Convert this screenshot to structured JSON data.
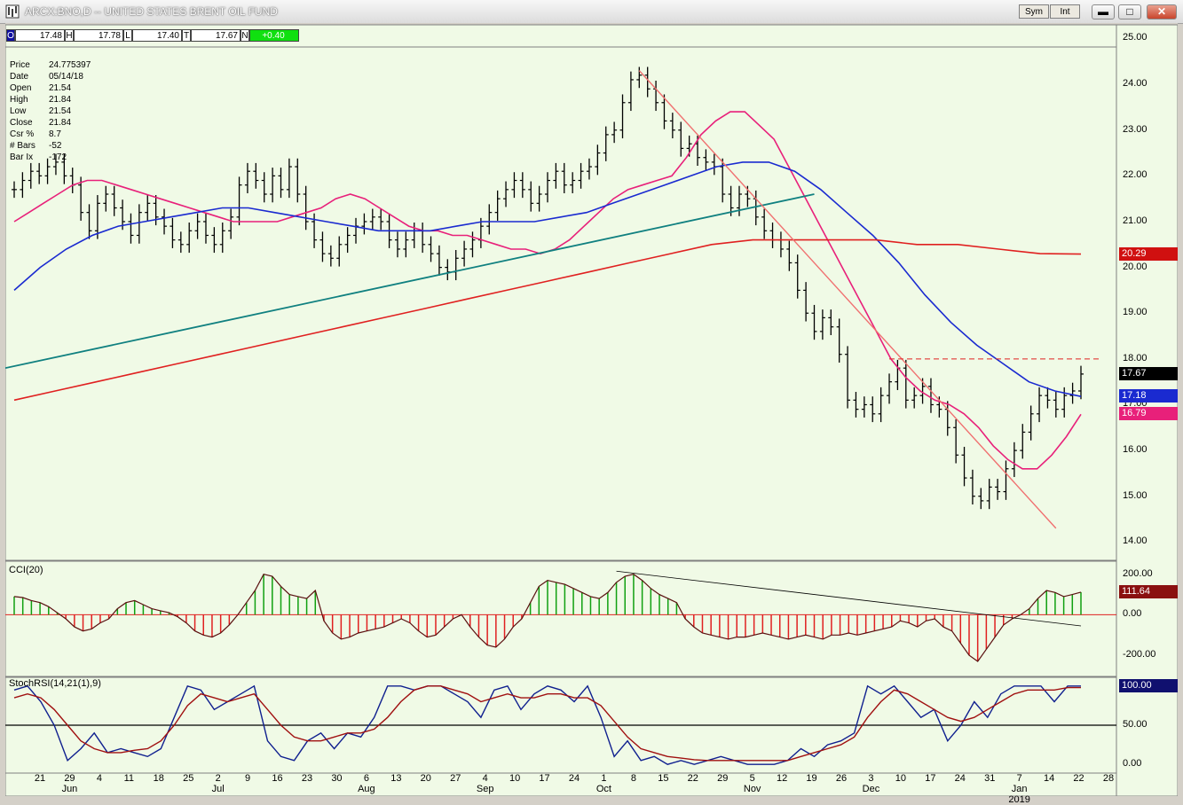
{
  "window": {
    "title": "ARCX:BNO,D -- UNITED STATES BRENT OIL FUND",
    "sym_label": "Sym",
    "int_label": "Int",
    "min_glyph": "▬",
    "max_glyph": "□",
    "close_glyph": "✕"
  },
  "ohlc_bar": {
    "o_key": "O",
    "o_val": "17.48",
    "h_key": "H",
    "h_val": "17.78",
    "l_key": "L",
    "l_val": "17.40",
    "c_key": "T",
    "c_val": "17.67",
    "n_key": "N",
    "n_val": "+0.40"
  },
  "info_panel": [
    {
      "label": "Price",
      "value": "24.775397"
    },
    {
      "label": "Date",
      "value": "05/14/18"
    },
    {
      "label": "Open",
      "value": "21.54"
    },
    {
      "label": "High",
      "value": "21.84"
    },
    {
      "label": "Low",
      "value": "21.54"
    },
    {
      "label": "Close",
      "value": "21.84"
    },
    {
      "label": "Csr %",
      "value": "8.7"
    },
    {
      "label": "# Bars",
      "value": "-52"
    },
    {
      "label": "Bar Ix",
      "value": "-172"
    }
  ],
  "colors": {
    "background": "#f0fae6",
    "bars": "#000000",
    "ma_fast": "#e8207a",
    "ma_mid": "#1a2ad0",
    "ma_slow": "#e02020",
    "trend_up": "#108080",
    "trend_down": "#f07070",
    "cci_pos": "#10a010",
    "cci_neg": "#e02020",
    "rsi_line": "#10208f",
    "rsi_signal": "#a01010"
  },
  "price_tags": {
    "last": "17.67",
    "ma_mid": "17.18",
    "ma_fast": "16.79",
    "ma_slow": "20.29"
  },
  "cci_panel": {
    "title": "CCI(20)",
    "tag": "111.64",
    "ticks": [
      "200.00",
      "0.00",
      "-200.00"
    ]
  },
  "rsi_panel": {
    "title": "StochRSI(14,21(1),9)",
    "tag": "100.00",
    "ticks": [
      "100.00",
      "50.00",
      "0.00"
    ]
  },
  "x_axis": {
    "day_labels": [
      "21",
      "29",
      "4",
      "11",
      "18",
      "25",
      "2",
      "9",
      "16",
      "23",
      "30",
      "6",
      "13",
      "20",
      "27",
      "4",
      "10",
      "17",
      "24",
      "1",
      "8",
      "15",
      "22",
      "29",
      "5",
      "12",
      "19",
      "26",
      "3",
      "10",
      "17",
      "24",
      "31",
      "7",
      "14",
      "22",
      "28"
    ],
    "month_labels": [
      "Jun",
      "Jul",
      "Aug",
      "Sep",
      "Oct",
      "Nov",
      "Dec",
      "Jan 2019"
    ]
  },
  "chart_data": [
    {
      "type": "line",
      "title": "ARCX:BNO,D -- UNITED STATES BRENT OIL FUND",
      "ylim": [
        13.6,
        25.3
      ],
      "y_ticks": [
        14.0,
        15.0,
        16.0,
        17.0,
        18.0,
        19.0,
        20.0,
        21.0,
        22.0,
        23.0,
        24.0,
        25.0
      ],
      "close_series": [
        21.7,
        21.9,
        22.1,
        22.0,
        22.2,
        22.3,
        22.0,
        21.8,
        21.2,
        20.8,
        21.4,
        21.6,
        21.3,
        21.0,
        20.7,
        21.2,
        21.4,
        21.1,
        20.9,
        20.6,
        20.5,
        20.8,
        21.0,
        20.7,
        20.5,
        20.8,
        21.1,
        21.8,
        22.1,
        21.9,
        21.6,
        22.0,
        21.7,
        22.2,
        21.6,
        21.0,
        20.6,
        20.3,
        20.2,
        20.5,
        20.7,
        20.9,
        21.0,
        21.1,
        21.0,
        20.6,
        20.4,
        20.6,
        20.8,
        20.5,
        20.3,
        20.0,
        19.9,
        20.2,
        20.4,
        20.6,
        20.9,
        21.2,
        21.5,
        21.7,
        21.9,
        21.7,
        21.4,
        21.6,
        21.9,
        22.1,
        21.8,
        21.9,
        22.1,
        22.2,
        22.5,
        22.9,
        23.0,
        23.6,
        24.1,
        24.2,
        23.9,
        23.6,
        23.2,
        23.0,
        22.6,
        22.7,
        22.4,
        22.3,
        22.2,
        21.6,
        21.3,
        21.6,
        21.5,
        21.1,
        20.8,
        20.6,
        20.4,
        20.1,
        19.5,
        19.0,
        18.6,
        18.9,
        18.7,
        18.1,
        17.1,
        16.9,
        17.0,
        16.8,
        17.2,
        17.5,
        17.8,
        17.1,
        17.2,
        17.4,
        17.0,
        16.9,
        16.5,
        15.9,
        15.4,
        15.0,
        14.9,
        15.2,
        15.1,
        15.6,
        16.0,
        16.4,
        16.8,
        17.2,
        17.1,
        16.9,
        17.2,
        17.3,
        17.67
      ],
      "series": [
        {
          "name": "Fast MA",
          "values": [
            21.0,
            21.2,
            21.4,
            21.6,
            21.8,
            21.9,
            21.9,
            21.8,
            21.7,
            21.6,
            21.5,
            21.4,
            21.3,
            21.2,
            21.1,
            21.0,
            21.0,
            21.0,
            21.0,
            21.1,
            21.2,
            21.3,
            21.5,
            21.6,
            21.5,
            21.3,
            21.1,
            20.9,
            20.8,
            20.8,
            20.7,
            20.7,
            20.6,
            20.5,
            20.4,
            20.4,
            20.3,
            20.4,
            20.6,
            20.9,
            21.2,
            21.5,
            21.7,
            21.8,
            21.9,
            22.0,
            22.4,
            22.9,
            23.2,
            23.4,
            23.4,
            23.1,
            22.8,
            22.2,
            21.6,
            21.0,
            20.4,
            19.8,
            19.2,
            18.6,
            18.0,
            17.6,
            17.3,
            17.1,
            17.0,
            16.8,
            16.5,
            16.1,
            15.8,
            15.6,
            15.6,
            15.9,
            16.3,
            16.79
          ]
        },
        {
          "name": "Mid MA",
          "values": [
            19.5,
            20.0,
            20.4,
            20.7,
            20.9,
            21.0,
            21.1,
            21.2,
            21.3,
            21.3,
            21.2,
            21.1,
            21.0,
            20.9,
            20.8,
            20.8,
            20.8,
            20.9,
            21.0,
            21.0,
            21.0,
            21.1,
            21.2,
            21.4,
            21.6,
            21.8,
            22.0,
            22.2,
            22.3,
            22.3,
            22.1,
            21.7,
            21.2,
            20.7,
            20.1,
            19.4,
            18.8,
            18.3,
            17.9,
            17.5,
            17.3,
            17.18
          ]
        },
        {
          "name": "Slow MA",
          "values": [
            17.1,
            17.3,
            17.5,
            17.7,
            17.9,
            18.1,
            18.3,
            18.5,
            18.7,
            18.9,
            19.1,
            19.3,
            19.5,
            19.7,
            19.9,
            20.1,
            20.3,
            20.5,
            20.6,
            20.6,
            20.6,
            20.6,
            20.5,
            20.5,
            20.4,
            20.3,
            20.29
          ]
        }
      ]
    },
    {
      "type": "bar",
      "title": "CCI(20)",
      "ylim": [
        -300,
        260
      ],
      "y_ticks": [
        200,
        0,
        -200
      ],
      "values": [
        90,
        85,
        70,
        60,
        40,
        10,
        -20,
        -60,
        -80,
        -70,
        -40,
        -20,
        30,
        60,
        70,
        50,
        30,
        20,
        10,
        -10,
        -40,
        -80,
        -100,
        -110,
        -90,
        -50,
        0,
        60,
        120,
        200,
        190,
        140,
        100,
        90,
        80,
        120,
        -30,
        -90,
        -120,
        -110,
        -90,
        -80,
        -70,
        -60,
        -40,
        -20,
        -40,
        -80,
        -110,
        -100,
        -60,
        -20,
        0,
        -60,
        -110,
        -150,
        -160,
        -120,
        -60,
        -20,
        60,
        140,
        170,
        160,
        150,
        130,
        110,
        90,
        80,
        110,
        160,
        190,
        200,
        170,
        130,
        100,
        80,
        60,
        -20,
        -60,
        -90,
        -100,
        -110,
        -120,
        -110,
        -110,
        -100,
        -90,
        -100,
        -110,
        -120,
        -110,
        -100,
        -110,
        -120,
        -100,
        -100,
        -90,
        -100,
        -90,
        -80,
        -70,
        -60,
        -30,
        -40,
        -60,
        -30,
        -20,
        -60,
        -80,
        -140,
        -200,
        -230,
        -170,
        -110,
        -50,
        -20,
        0,
        30,
        80,
        120,
        110,
        90,
        100,
        111.64
      ]
    },
    {
      "type": "line",
      "title": "StochRSI(14,21(1),9)",
      "ylim": [
        -10,
        110
      ],
      "y_ticks": [
        100,
        50,
        0
      ],
      "series": [
        {
          "name": "StochRSI",
          "values": [
            95,
            100,
            80,
            50,
            5,
            20,
            40,
            15,
            20,
            15,
            10,
            20,
            60,
            100,
            95,
            70,
            80,
            90,
            100,
            30,
            10,
            5,
            30,
            40,
            20,
            40,
            35,
            60,
            100,
            100,
            95,
            100,
            100,
            90,
            80,
            60,
            95,
            100,
            70,
            90,
            100,
            95,
            80,
            100,
            60,
            10,
            30,
            5,
            10,
            0,
            5,
            0,
            5,
            10,
            5,
            0,
            0,
            0,
            5,
            20,
            10,
            25,
            30,
            40,
            100,
            90,
            100,
            80,
            60,
            70,
            30,
            50,
            80,
            60,
            90,
            100,
            100,
            100,
            80,
            100,
            100
          ]
        },
        {
          "name": "Signal",
          "values": [
            85,
            90,
            85,
            70,
            50,
            30,
            20,
            15,
            15,
            18,
            20,
            30,
            50,
            75,
            90,
            85,
            80,
            85,
            90,
            70,
            50,
            35,
            30,
            30,
            35,
            40,
            40,
            45,
            60,
            80,
            95,
            100,
            100,
            95,
            90,
            80,
            85,
            90,
            85,
            85,
            90,
            90,
            85,
            85,
            75,
            55,
            35,
            20,
            15,
            10,
            8,
            6,
            5,
            5,
            5,
            5,
            5,
            5,
            5,
            10,
            15,
            20,
            25,
            35,
            60,
            80,
            95,
            90,
            80,
            70,
            60,
            55,
            60,
            70,
            80,
            90,
            95,
            95,
            95,
            98,
            98
          ]
        }
      ]
    }
  ]
}
